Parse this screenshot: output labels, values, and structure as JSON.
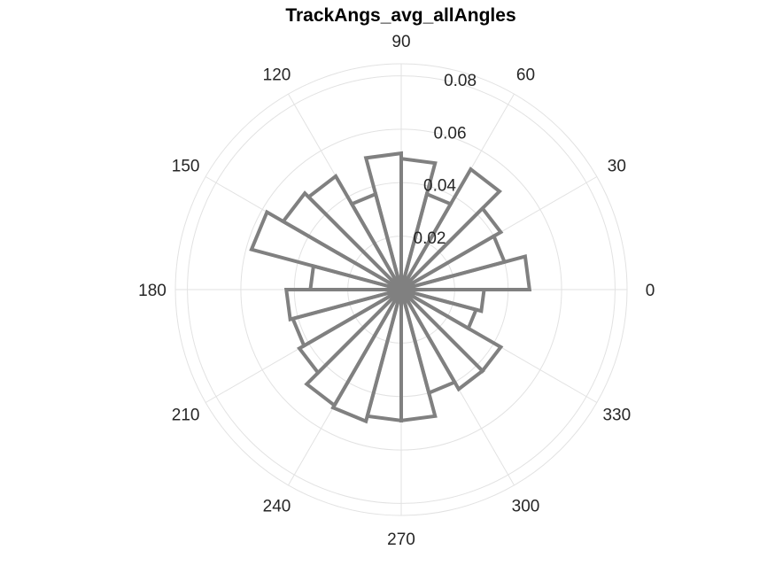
{
  "chart_data": {
    "type": "polar-histogram",
    "title": "TrackAngs_avg_allAngles",
    "angle_unit": "degrees",
    "theta_ticks": [
      0,
      30,
      60,
      90,
      120,
      150,
      180,
      210,
      240,
      270,
      300,
      330
    ],
    "theta_tick_labels": [
      "0",
      "30",
      "60",
      "90",
      "120",
      "150",
      "180",
      "210",
      "240",
      "270",
      "300",
      "330"
    ],
    "r_ticks": [
      0.02,
      0.04,
      0.06,
      0.08
    ],
    "r_tick_labels": [
      "0.02",
      "0.04",
      "0.06",
      "0.08"
    ],
    "rlim": [
      0,
      0.0845
    ],
    "bin_width_deg": 15,
    "bin_starts_deg": [
      0,
      15,
      30,
      45,
      60,
      75,
      90,
      105,
      120,
      135,
      150,
      165,
      180,
      195,
      210,
      225,
      240,
      255,
      270,
      285,
      300,
      315,
      330,
      345
    ],
    "values": [
      0.048,
      0.04,
      0.043,
      0.052,
      0.037,
      0.049,
      0.051,
      0.037,
      0.049,
      0.051,
      0.058,
      0.034,
      0.043,
      0.042,
      0.044,
      0.05,
      0.051,
      0.049,
      0.049,
      0.04,
      0.043,
      0.043,
      0.029,
      0.031
    ],
    "grid": true,
    "bar_edge_color": "#808080",
    "bar_face": "none"
  }
}
